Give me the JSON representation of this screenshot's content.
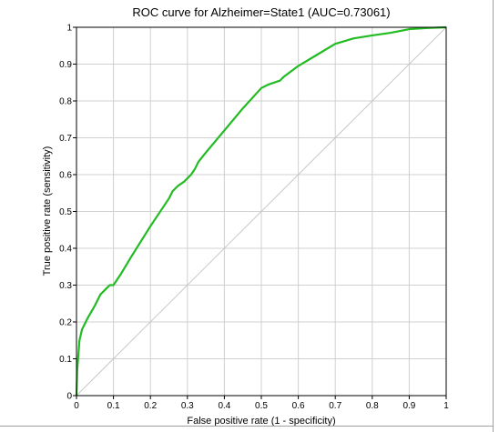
{
  "chart_data": {
    "type": "line",
    "title": "ROC curve for Alzheimer=State1 (AUC=0.73061)",
    "xlabel": "False positive rate (1 - specificity)",
    "ylabel": "True positive rate (sensitivity)",
    "xlim": [
      0,
      1
    ],
    "ylim": [
      0,
      1
    ],
    "x_ticks": [
      "0",
      "0.1",
      "0.2",
      "0.3",
      "0.4",
      "0.5",
      "0.6",
      "0.7",
      "0.8",
      "0.9",
      "1"
    ],
    "y_ticks": [
      "0",
      "0.1",
      "0.2",
      "0.3",
      "0.4",
      "0.5",
      "0.6",
      "0.7",
      "0.8",
      "0.9",
      "1"
    ],
    "grid": true,
    "legend": "none",
    "series": [
      {
        "color": "#22bb22",
        "x": [
          0,
          0.002,
          0.005,
          0.008,
          0.015,
          0.03,
          0.05,
          0.065,
          0.08,
          0.09,
          0.1,
          0.12,
          0.15,
          0.2,
          0.25,
          0.26,
          0.275,
          0.29,
          0.3,
          0.31,
          0.32,
          0.33,
          0.35,
          0.4,
          0.45,
          0.5,
          0.52,
          0.55,
          0.56,
          0.6,
          0.65,
          0.7,
          0.75,
          0.8,
          0.85,
          0.9,
          0.95,
          1.0
        ],
        "y": [
          0,
          0.07,
          0.11,
          0.15,
          0.18,
          0.21,
          0.245,
          0.275,
          0.29,
          0.3,
          0.3,
          0.33,
          0.38,
          0.46,
          0.535,
          0.555,
          0.57,
          0.58,
          0.59,
          0.6,
          0.615,
          0.635,
          0.66,
          0.72,
          0.78,
          0.835,
          0.845,
          0.855,
          0.865,
          0.895,
          0.925,
          0.955,
          0.97,
          0.978,
          0.985,
          0.995,
          0.998,
          1.0
        ]
      }
    ],
    "reference_line": {
      "color": "#c8c8c8",
      "x": [
        0,
        1
      ],
      "y": [
        0,
        1
      ]
    },
    "grid_color": "#d0d0d0"
  }
}
